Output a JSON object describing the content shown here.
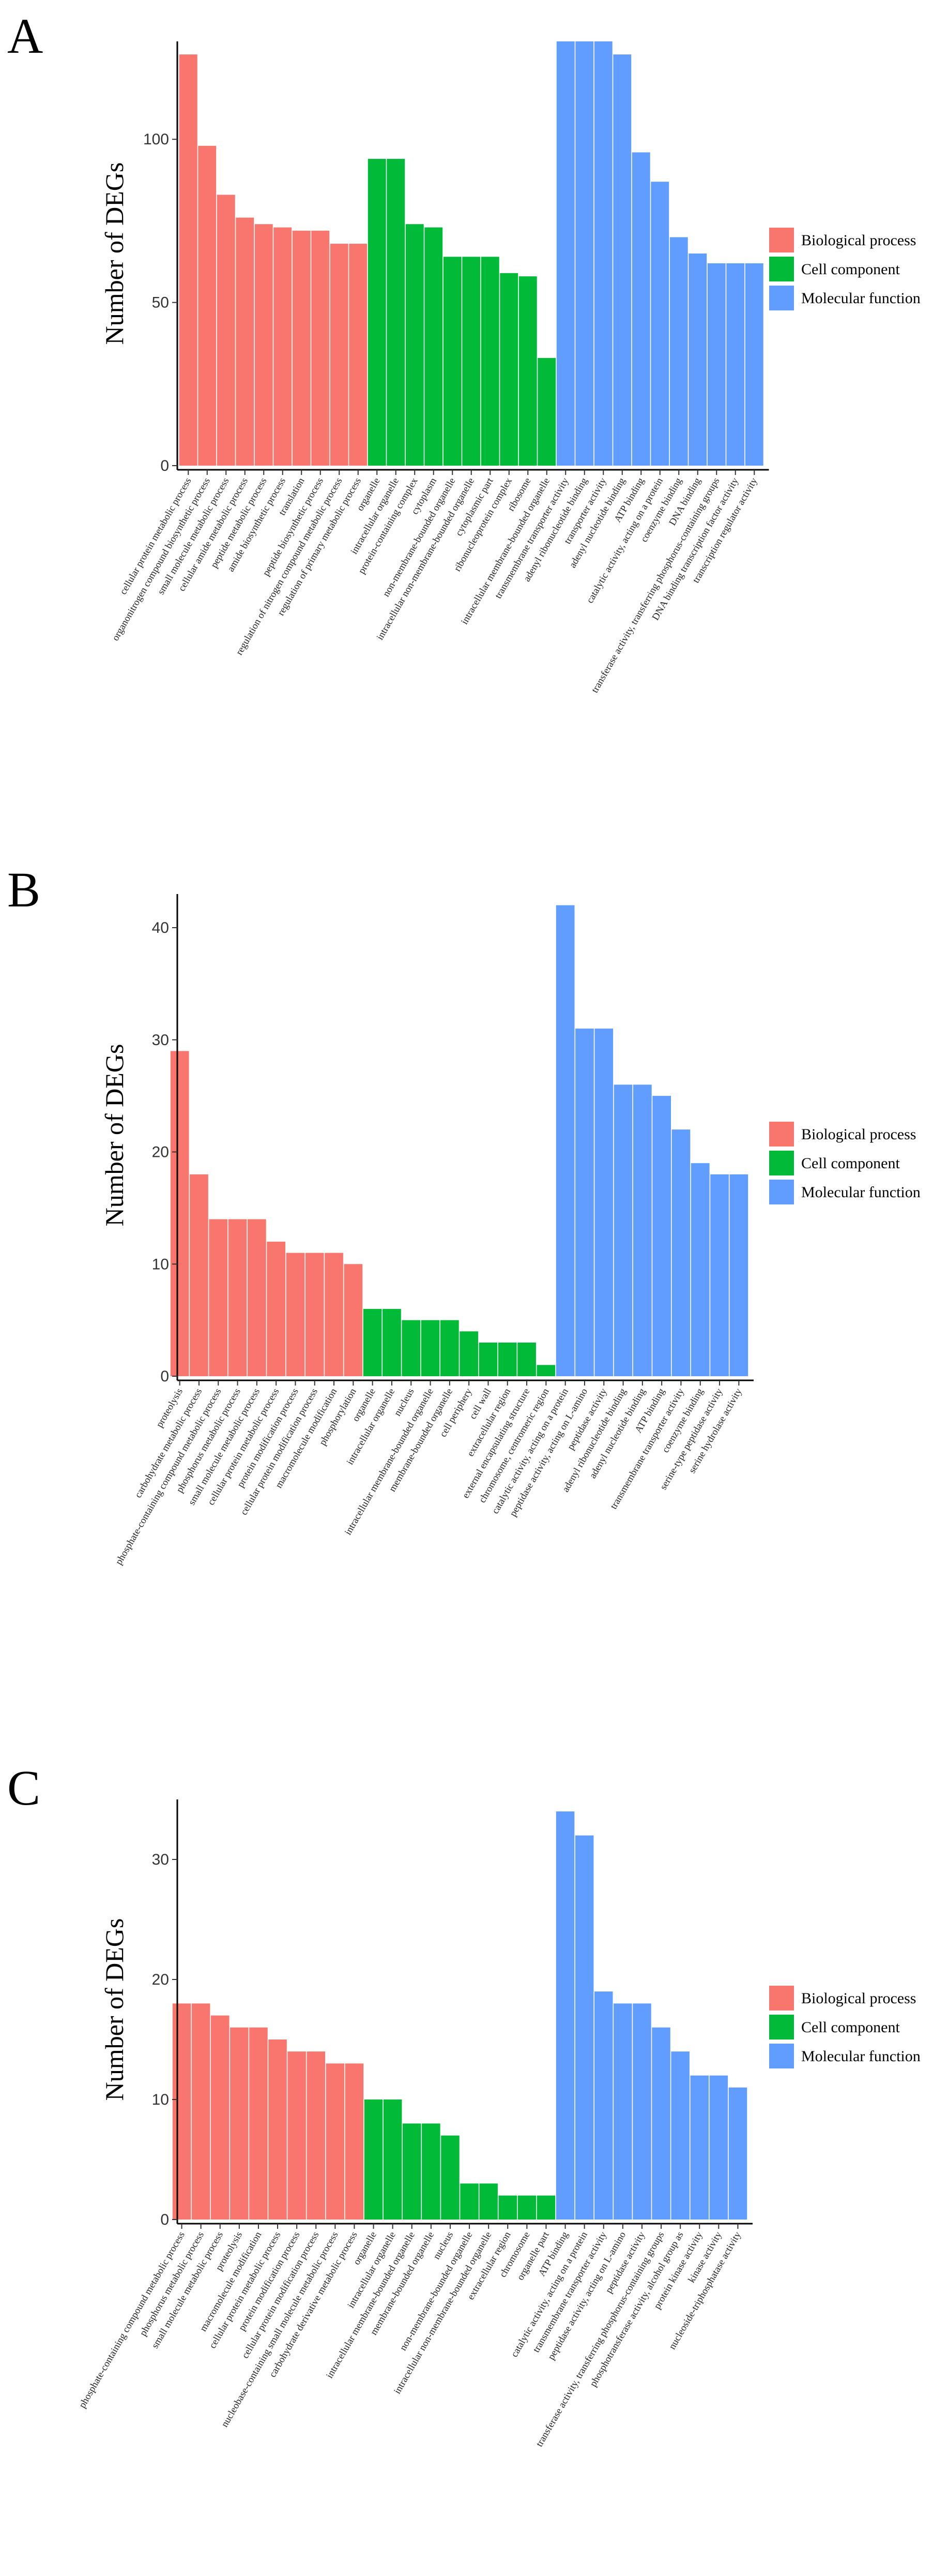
{
  "colors": {
    "Biological process": "#F8766D",
    "Cell component": "#00BA38",
    "Molecular function": "#619CFF"
  },
  "legend": [
    "Biological process",
    "Cell component",
    "Molecular function"
  ],
  "chart_data": [
    {
      "type": "bar",
      "panel": "A",
      "ylabel": "Number of DEGs",
      "xlabel": "",
      "ylim": [
        0,
        130
      ],
      "yticks": [
        0,
        50,
        100
      ],
      "categories": [
        "cellular protein metabolic process",
        "organonitrogen compound biosynthetic process",
        "small molecule metabolic process",
        "cellular amide metabolic process",
        "peptide metabolic process",
        "amide biosynthetic process",
        "translation",
        "peptide biosynthetic process",
        "regulation of nitrogen compound metabolic process",
        "regulation of primary metabolic process",
        "organelle",
        "intracellular organelle",
        "protein-containing complex",
        "cytoplasm",
        "non-membrane-bounded organelle",
        "intracellular non-membrane-bounded organelle",
        "cytoplasmic part",
        "ribonucleoprotein complex",
        "ribosome",
        "intracellular membrane-bounded organelle",
        "transmembrane transporter activity",
        "adenyl ribonucleotide binding",
        "transporter activity",
        "adenyl nucleotide binding",
        "ATP binding",
        "catalytic activity, acting on a protein",
        "coenzyme binding",
        "DNA binding",
        "transferase activity, transferring phosphorus-containing groups",
        "DNA binding transcription factor activity",
        "transcription regulator activity"
      ],
      "values": [
        126,
        98,
        83,
        76,
        74,
        73,
        72,
        72,
        68,
        68,
        94,
        94,
        74,
        73,
        64,
        64,
        64,
        59,
        58,
        33,
        130,
        130,
        130,
        126,
        96,
        87,
        70,
        65,
        62,
        62,
        62
      ],
      "groups": [
        "Biological process",
        "Biological process",
        "Biological process",
        "Biological process",
        "Biological process",
        "Biological process",
        "Biological process",
        "Biological process",
        "Biological process",
        "Biological process",
        "Cell component",
        "Cell component",
        "Cell component",
        "Cell component",
        "Cell component",
        "Cell component",
        "Cell component",
        "Cell component",
        "Cell component",
        "Cell component",
        "Molecular function",
        "Molecular function",
        "Molecular function",
        "Molecular function",
        "Molecular function",
        "Molecular function",
        "Molecular function",
        "Molecular function",
        "Molecular function",
        "Molecular function",
        "Molecular function"
      ]
    },
    {
      "type": "bar",
      "panel": "B",
      "ylabel": "Number of DEGs",
      "xlabel": "",
      "ylim": [
        0,
        43
      ],
      "yticks": [
        0,
        10,
        20,
        30,
        40
      ],
      "categories": [
        "proteolysis",
        "carbohydrate metabolic process",
        "phosphate-containing compound metabolic process",
        "phosphorus metabolic process",
        "small molecule metabolic process",
        "cellular protein metabolic process",
        "protein modification process",
        "cellular protein modification process",
        "macromolecule modification",
        "phosphorylation",
        "organelle",
        "intracellular organelle",
        "nucleus",
        "intracellular membrane-bounded organelle",
        "membrane-bounded organelle",
        "cell periphery",
        "cell wall",
        "extracellular region",
        "external encapsulating structure",
        "chromosome, centromeric region",
        "catalytic activity, acting on a protein",
        "peptidase activity, acting on L-amino",
        "peptidase activity",
        "adenyl ribonucleotide binding",
        "adenyl nucleotide binding",
        "ATP binding",
        "transmembrane transporter activity",
        "coenzyme binding",
        "serine-type peptidase activity",
        "serine hydrolase activity"
      ],
      "values": [
        29,
        18,
        14,
        14,
        14,
        12,
        11,
        11,
        11,
        10,
        6,
        6,
        5,
        5,
        5,
        4,
        3,
        3,
        3,
        1,
        42,
        31,
        31,
        26,
        26,
        25,
        22,
        19,
        18,
        18
      ],
      "groups": [
        "Biological process",
        "Biological process",
        "Biological process",
        "Biological process",
        "Biological process",
        "Biological process",
        "Biological process",
        "Biological process",
        "Biological process",
        "Biological process",
        "Cell component",
        "Cell component",
        "Cell component",
        "Cell component",
        "Cell component",
        "Cell component",
        "Cell component",
        "Cell component",
        "Cell component",
        "Cell component",
        "Molecular function",
        "Molecular function",
        "Molecular function",
        "Molecular function",
        "Molecular function",
        "Molecular function",
        "Molecular function",
        "Molecular function",
        "Molecular function",
        "Molecular function"
      ]
    },
    {
      "type": "bar",
      "panel": "C",
      "ylabel": "Number of DEGs",
      "xlabel": "",
      "ylim": [
        0,
        35
      ],
      "yticks": [
        0,
        10,
        20,
        30
      ],
      "categories": [
        "phosphate-containing compound metabolic process",
        "phosphorus metabolic process",
        "small molecule metabolic process",
        "proteolysis",
        "macromolecule modification",
        "cellular protein metabolic process",
        "protein modification process",
        "cellular protein modification process",
        "nucleobase-containing small molecule metabolic process",
        "carbohydrate derivative metabolic process",
        "organelle",
        "intracellular organelle",
        "intracellular membrane-bounded organelle",
        "membrane-bounded organelle",
        "nucleus",
        "non-membrane-bounded organelle",
        "intracellular non-membrane-bounded organelle",
        "extracellular region",
        "chromosome",
        "organelle part",
        "ATP binding",
        "catalytic activity, acting on a protein",
        "transmembrane transporter activity",
        "peptidase activity, acting on L-amino",
        "peptidase activity",
        "transferase activity, transferring phosphorus-containing groups",
        "phosphotransferase activity, alcohol group as",
        "protein kinase activity",
        "kinase activity",
        "nucleoside-triphosphatase activity"
      ],
      "values": [
        18,
        18,
        17,
        16,
        16,
        15,
        14,
        14,
        13,
        13,
        10,
        10,
        8,
        8,
        7,
        3,
        3,
        2,
        2,
        2,
        34,
        32,
        19,
        18,
        18,
        16,
        14,
        12,
        12,
        11
      ],
      "groups": [
        "Biological process",
        "Biological process",
        "Biological process",
        "Biological process",
        "Biological process",
        "Biological process",
        "Biological process",
        "Biological process",
        "Biological process",
        "Biological process",
        "Cell component",
        "Cell component",
        "Cell component",
        "Cell component",
        "Cell component",
        "Cell component",
        "Cell component",
        "Cell component",
        "Cell component",
        "Cell component",
        "Molecular function",
        "Molecular function",
        "Molecular function",
        "Molecular function",
        "Molecular function",
        "Molecular function",
        "Molecular function",
        "Molecular function",
        "Molecular function",
        "Molecular function"
      ]
    }
  ]
}
